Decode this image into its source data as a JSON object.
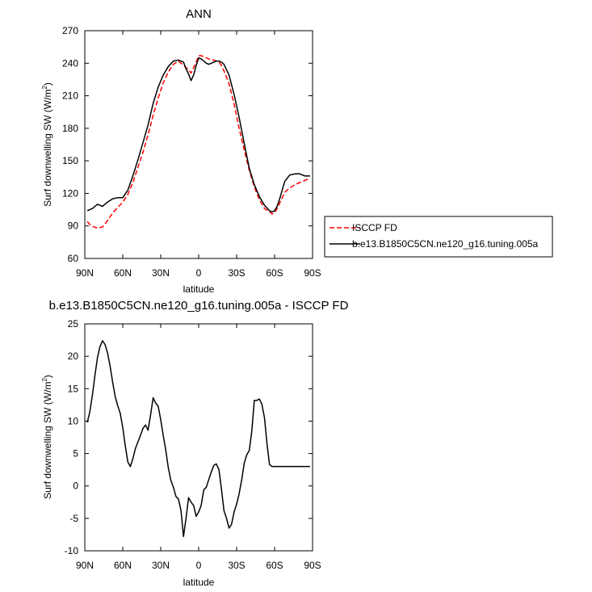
{
  "chart_data": [
    {
      "type": "line",
      "title": "ANN",
      "xlabel": "latitude",
      "ylabel_main": "Surf downwelling SW (W/m",
      "ylabel_sup": "2",
      "ylabel_close": ")",
      "xlim": [
        90,
        -90
      ],
      "ylim": [
        60,
        270
      ],
      "xticks": [
        90,
        60,
        30,
        0,
        -30,
        -60,
        -90
      ],
      "xtick_labels": [
        "90N",
        "60N",
        "30N",
        "0",
        "30S",
        "60S",
        "90S"
      ],
      "yticks": [
        60,
        90,
        120,
        150,
        180,
        210,
        240,
        270
      ],
      "ytick_labels": [
        "60",
        "90",
        "120",
        "150",
        "180",
        "210",
        "240",
        "270"
      ],
      "grid": false,
      "legend_placement": "right",
      "series": [
        {
          "name": "ISCCP FD",
          "color": "#ff0000",
          "dash": true,
          "x": [
            88,
            85,
            80,
            76,
            72,
            68,
            64,
            60,
            56,
            52,
            48,
            44,
            40,
            36,
            32,
            28,
            24,
            20,
            16,
            12,
            8,
            6,
            4,
            2,
            0,
            -2,
            -4,
            -6,
            -8,
            -10,
            -12,
            -14,
            -16,
            -18,
            -20,
            -24,
            -28,
            -32,
            -36,
            -40,
            -44,
            -48,
            -52,
            -56,
            -58,
            -60,
            -62,
            -64,
            -68,
            -72,
            -76,
            -80,
            -84,
            -88
          ],
          "y": [
            94,
            90,
            88,
            89,
            95,
            102,
            107,
            112,
            119,
            130,
            144,
            158,
            174,
            192,
            208,
            222,
            232,
            239,
            242,
            238,
            234,
            231,
            236,
            241,
            247,
            247,
            246,
            245,
            244,
            243,
            243,
            242,
            241,
            238,
            233,
            221,
            202,
            180,
            160,
            141,
            126,
            114,
            106,
            103,
            101,
            102,
            106,
            111,
            121,
            125,
            128,
            130,
            132,
            134
          ]
        },
        {
          "name": "b.e13.B1850C5CN.ne120_g16.tuning.005a",
          "color": "#000000",
          "dash": false,
          "x": [
            88,
            84,
            80,
            76,
            72,
            68,
            64,
            60,
            56,
            52,
            48,
            44,
            40,
            36,
            32,
            28,
            24,
            20,
            16,
            12,
            10,
            8,
            6,
            4,
            2,
            0,
            -2,
            -4,
            -6,
            -8,
            -10,
            -12,
            -14,
            -16,
            -18,
            -20,
            -24,
            -28,
            -32,
            -36,
            -40,
            -44,
            -48,
            -52,
            -56,
            -58,
            -60,
            -62,
            -64,
            -68,
            -72,
            -76,
            -80,
            -84,
            -88
          ],
          "y": [
            104,
            106,
            110,
            108,
            112,
            115,
            116,
            116,
            123,
            136,
            151,
            167,
            183,
            203,
            218,
            229,
            237,
            242,
            243,
            241,
            235,
            230,
            224,
            229,
            238,
            245,
            244,
            242,
            240,
            239,
            240,
            241,
            242,
            242,
            241,
            239,
            229,
            211,
            190,
            166,
            143,
            128,
            117,
            109,
            104,
            103,
            104,
            108,
            115,
            131,
            137,
            138,
            138,
            136,
            136
          ]
        }
      ]
    },
    {
      "type": "line",
      "title": "b.e13.B1850C5CN.ne120_g16.tuning.005a - ISCCP FD",
      "xlabel": "latitude",
      "ylabel_main": "Surf downwelling SW (W/m",
      "ylabel_sup": "2",
      "ylabel_close": ")",
      "xlim": [
        90,
        -90
      ],
      "ylim": [
        -10,
        25
      ],
      "xticks": [
        90,
        60,
        30,
        0,
        -30,
        -60,
        -90
      ],
      "xtick_labels": [
        "90N",
        "60N",
        "30N",
        "0",
        "30S",
        "60S",
        "90S"
      ],
      "yticks": [
        -10,
        -5,
        0,
        5,
        10,
        15,
        20,
        25
      ],
      "ytick_labels": [
        "-10",
        "-5",
        "0",
        "5",
        "10",
        "15",
        "20",
        "25"
      ],
      "grid": false,
      "series": [
        {
          "name": "",
          "color": "#000000",
          "dash": false,
          "x": [
            88,
            86,
            84,
            82,
            80,
            78,
            76,
            74,
            72,
            70,
            68,
            66,
            64,
            62,
            60,
            58,
            56,
            54,
            52,
            50,
            48,
            46,
            44,
            42,
            40,
            38,
            36,
            34,
            32,
            30,
            28,
            26,
            24,
            22,
            20,
            18,
            16,
            14,
            12,
            10,
            8,
            6,
            4,
            2,
            0,
            -2,
            -4,
            -6,
            -8,
            -10,
            -12,
            -14,
            -16,
            -18,
            -20,
            -22,
            -24,
            -26,
            -28,
            -30,
            -32,
            -34,
            -36,
            -38,
            -40,
            -42,
            -44,
            -46,
            -48,
            -50,
            -52,
            -54,
            -56,
            -58,
            -60,
            -62,
            -64,
            -66,
            -68,
            -70,
            -72,
            -74,
            -76,
            -78,
            -80,
            -82,
            -84,
            -86,
            -88
          ],
          "y": [
            9.8,
            11.5,
            14,
            17,
            19.8,
            21.5,
            22.4,
            21.8,
            20.5,
            18.5,
            16,
            13.8,
            12.4,
            11.2,
            9,
            6.2,
            3.7,
            3,
            4.2,
            5.8,
            6.8,
            7.8,
            8.9,
            9.4,
            8.6,
            11,
            13.6,
            12.8,
            12.3,
            10.2,
            7.8,
            5.5,
            2.8,
            0.9,
            -0.2,
            -1.6,
            -2,
            -3.8,
            -7.8,
            -5,
            -1.8,
            -2.5,
            -3,
            -4.7,
            -4,
            -3,
            -0.6,
            -0.2,
            1,
            2.2,
            3.2,
            3.4,
            2.5,
            -0.5,
            -3.8,
            -5,
            -6.5,
            -5.9,
            -4,
            -2.8,
            -1.2,
            1,
            3.5,
            4.8,
            5.5,
            8.5,
            13.2,
            13.2,
            13.4,
            12.6,
            10.5,
            6.5,
            3.3,
            3,
            3,
            3,
            3,
            3,
            3,
            3,
            3,
            3,
            3,
            3,
            3,
            3,
            3,
            3,
            3
          ]
        }
      ]
    }
  ]
}
